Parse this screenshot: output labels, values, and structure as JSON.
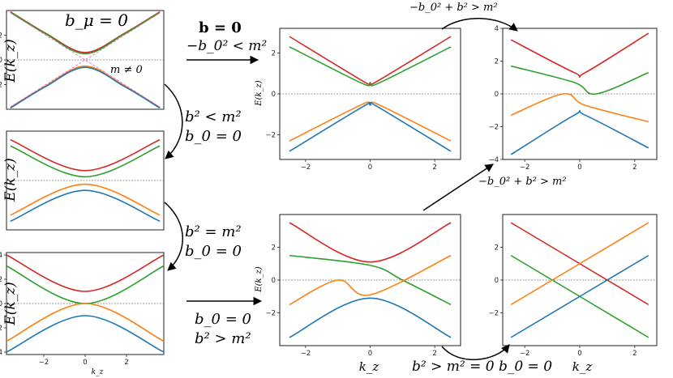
{
  "colors": {
    "red": "#d62728",
    "green": "#2ca02c",
    "orange": "#ff7f0e",
    "blue": "#1f77b4",
    "dispersion_overlay": "#ff69b4"
  },
  "labels": {
    "energy_axis": "E(k_z)",
    "momentum_axis": "k_z"
  },
  "annotations": {
    "panel1_title": "b_μ = 0",
    "panel1_mass": "m ≠ 0",
    "arrow_top_b": "b = 0",
    "arrow_top_cond": "−b_0² < m²",
    "arrow_top_right": "−b_0² + b² > m²",
    "panel5_below": "−b_0² + b² > m²",
    "arrow1_b": "b² < m²",
    "arrow1_b0": "b_0 = 0",
    "arrow2_b": "b² = m²",
    "arrow2_b0": "b_0 = 0",
    "arrow_bottom_b0": "b_0 = 0",
    "arrow_bottom_b": "b² > m²",
    "bottom_cond": "b² > m² = 0  b_0 = 0"
  },
  "chart_data": [
    {
      "id": "p1",
      "type": "line",
      "title": "b_μ = 0",
      "ylabel": "E(k_z)",
      "xlim": [
        -4,
        4
      ],
      "ylim": [
        -4,
        4
      ],
      "yticks": [
        "−2",
        "0",
        "2"
      ],
      "series": [
        {
          "color": "red",
          "values": [
            [
              -3.8,
              3.9
            ],
            [
              -2,
              2.15
            ],
            [
              0,
              0.6
            ],
            [
              2,
              2.15
            ],
            [
              3.8,
              3.9
            ]
          ]
        },
        {
          "color": "green",
          "values": [
            [
              -3.8,
              3.85
            ],
            [
              -2,
              2.1
            ],
            [
              0,
              0.5
            ],
            [
              2,
              2.1
            ],
            [
              3.8,
              3.85
            ]
          ]
        },
        {
          "color": "orange",
          "values": [
            [
              -3.8,
              -3.85
            ],
            [
              -2,
              -2.1
            ],
            [
              0,
              -0.5
            ],
            [
              2,
              -2.1
            ],
            [
              3.8,
              -3.85
            ]
          ]
        },
        {
          "color": "blue",
          "values": [
            [
              -3.8,
              -3.9
            ],
            [
              -2,
              -2.15
            ],
            [
              0,
              -0.6
            ],
            [
              2,
              -2.15
            ],
            [
              3.8,
              -3.9
            ]
          ]
        }
      ]
    },
    {
      "id": "p2",
      "type": "line",
      "ylabel": "E(k_z)",
      "xlim": [
        -4,
        4
      ],
      "ylim": [
        -4,
        4
      ],
      "series": [
        {
          "color": "red",
          "values": [
            [
              -3.8,
              3.3
            ],
            [
              0,
              0.8
            ],
            [
              3.8,
              3.3
            ]
          ]
        },
        {
          "color": "green",
          "values": [
            [
              -3.8,
              2.8
            ],
            [
              0,
              0.3
            ],
            [
              3.8,
              2.8
            ]
          ]
        },
        {
          "color": "orange",
          "values": [
            [
              -3.8,
              -2.8
            ],
            [
              0,
              -0.3
            ],
            [
              3.8,
              -2.8
            ]
          ]
        },
        {
          "color": "blue",
          "values": [
            [
              -3.8,
              -3.3
            ],
            [
              0,
              -0.8
            ],
            [
              3.8,
              -3.3
            ]
          ]
        }
      ]
    },
    {
      "id": "p3",
      "type": "line",
      "ylabel": "E(k_z)",
      "xlabel": "k_z",
      "xlim": [
        -3.8,
        3.8
      ],
      "ylim": [
        -4.2,
        4.2
      ],
      "xticks": [
        "−2",
        "0",
        "2"
      ],
      "yticks": [
        "−4",
        "−2",
        "0",
        "2",
        "4"
      ],
      "series": [
        {
          "color": "red",
          "values": [
            [
              -3.8,
              4.0
            ],
            [
              0,
              1.0
            ],
            [
              3.8,
              4.0
            ]
          ]
        },
        {
          "color": "green",
          "values": [
            [
              -3.8,
              3.1
            ],
            [
              0,
              0.0
            ],
            [
              3.8,
              3.1
            ]
          ]
        },
        {
          "color": "orange",
          "values": [
            [
              -3.8,
              -3.1
            ],
            [
              0,
              0.0
            ],
            [
              3.8,
              -3.1
            ]
          ]
        },
        {
          "color": "blue",
          "values": [
            [
              -3.8,
              -4.0
            ],
            [
              0,
              -1.0
            ],
            [
              3.8,
              -4.0
            ]
          ]
        }
      ]
    },
    {
      "id": "p4",
      "type": "line",
      "ylabel": "E(k_z)",
      "xlim": [
        -2.8,
        2.8
      ],
      "ylim": [
        -3.2,
        3.2
      ],
      "xticks": [
        "−2",
        "0",
        "2"
      ],
      "yticks": [
        "−2",
        "0",
        "2"
      ],
      "series": [
        {
          "color": "red",
          "values": [
            [
              -2.5,
              2.8
            ],
            [
              -0.2,
              0.6
            ],
            [
              0,
              0.55
            ],
            [
              0.2,
              0.6
            ],
            [
              2.5,
              2.8
            ]
          ]
        },
        {
          "color": "green",
          "values": [
            [
              -2.5,
              2.3
            ],
            [
              -0.3,
              0.55
            ],
            [
              0,
              0.5
            ],
            [
              0.3,
              0.55
            ],
            [
              2.5,
              2.3
            ]
          ]
        },
        {
          "color": "orange",
          "values": [
            [
              -2.5,
              -2.3
            ],
            [
              -0.3,
              -0.55
            ],
            [
              0,
              -0.5
            ],
            [
              0.3,
              -0.55
            ],
            [
              2.5,
              -2.3
            ]
          ]
        },
        {
          "color": "blue",
          "values": [
            [
              -2.5,
              -2.8
            ],
            [
              -0.2,
              -0.6
            ],
            [
              0,
              -0.55
            ],
            [
              0.2,
              -0.6
            ],
            [
              2.5,
              -2.8
            ]
          ]
        }
      ]
    },
    {
      "id": "p5",
      "type": "line",
      "xlim": [
        -2.8,
        2.8
      ],
      "ylim": [
        -4,
        4
      ],
      "xticks": [
        "−2",
        "0",
        "2"
      ],
      "yticks": [
        "−4",
        "−2",
        "0",
        "2",
        "4"
      ],
      "series": [
        {
          "color": "red",
          "values": [
            [
              -2.5,
              3.3
            ],
            [
              -0.2,
              1.3
            ],
            [
              0.2,
              1.3
            ],
            [
              2.5,
              3.7
            ]
          ]
        },
        {
          "color": "green",
          "values": [
            [
              -2.5,
              1.7
            ],
            [
              -0.2,
              0.7
            ],
            [
              0.6,
              0.0
            ],
            [
              2.5,
              1.3
            ]
          ]
        },
        {
          "color": "orange",
          "values": [
            [
              -2.5,
              -1.3
            ],
            [
              -0.6,
              0.0
            ],
            [
              0.2,
              -0.7
            ],
            [
              2.5,
              -1.7
            ]
          ]
        },
        {
          "color": "blue",
          "values": [
            [
              -2.5,
              -3.7
            ],
            [
              -0.2,
              -1.3
            ],
            [
              0.2,
              -1.3
            ],
            [
              2.5,
              -3.3
            ]
          ]
        }
      ]
    },
    {
      "id": "p6",
      "type": "line",
      "ylabel": "E(k_z)",
      "xlabel": "k_z",
      "xlim": [
        -2.8,
        2.8
      ],
      "ylim": [
        -4,
        4
      ],
      "xticks": [
        "−2",
        "0",
        "2"
      ],
      "yticks": [
        "−2",
        "0",
        "2"
      ],
      "series": [
        {
          "color": "red",
          "values": [
            [
              -2.5,
              3.5
            ],
            [
              0,
              1.1
            ],
            [
              2.5,
              3.5
            ]
          ]
        },
        {
          "color": "green",
          "values": [
            [
              -2.5,
              1.5
            ],
            [
              0,
              0.9
            ],
            [
              1.0,
              0.0
            ],
            [
              2.5,
              -1.5
            ]
          ]
        },
        {
          "color": "orange",
          "values": [
            [
              -2.5,
              -1.5
            ],
            [
              -1.0,
              0.0
            ],
            [
              0,
              -0.9
            ],
            [
              2.5,
              1.5
            ]
          ]
        },
        {
          "color": "blue",
          "values": [
            [
              -2.5,
              -3.5
            ],
            [
              0,
              -1.1
            ],
            [
              2.5,
              -3.5
            ]
          ]
        }
      ]
    },
    {
      "id": "p7",
      "type": "line",
      "xlabel": "k_z",
      "xlim": [
        -2.8,
        2.8
      ],
      "ylim": [
        -4,
        4
      ],
      "xticks": [
        "−2",
        "0",
        "2"
      ],
      "yticks": [
        "−2",
        "0",
        "2"
      ],
      "series": [
        {
          "color": "red",
          "values": [
            [
              -2.5,
              3.5
            ],
            [
              2.5,
              -1.5
            ]
          ]
        },
        {
          "color": "green",
          "values": [
            [
              -2.5,
              1.5
            ],
            [
              2.5,
              -3.5
            ]
          ]
        },
        {
          "color": "orange",
          "values": [
            [
              -2.5,
              -1.5
            ],
            [
              2.5,
              3.5
            ]
          ]
        },
        {
          "color": "blue",
          "values": [
            [
              -2.5,
              -3.5
            ],
            [
              2.5,
              1.5
            ]
          ]
        }
      ]
    }
  ]
}
